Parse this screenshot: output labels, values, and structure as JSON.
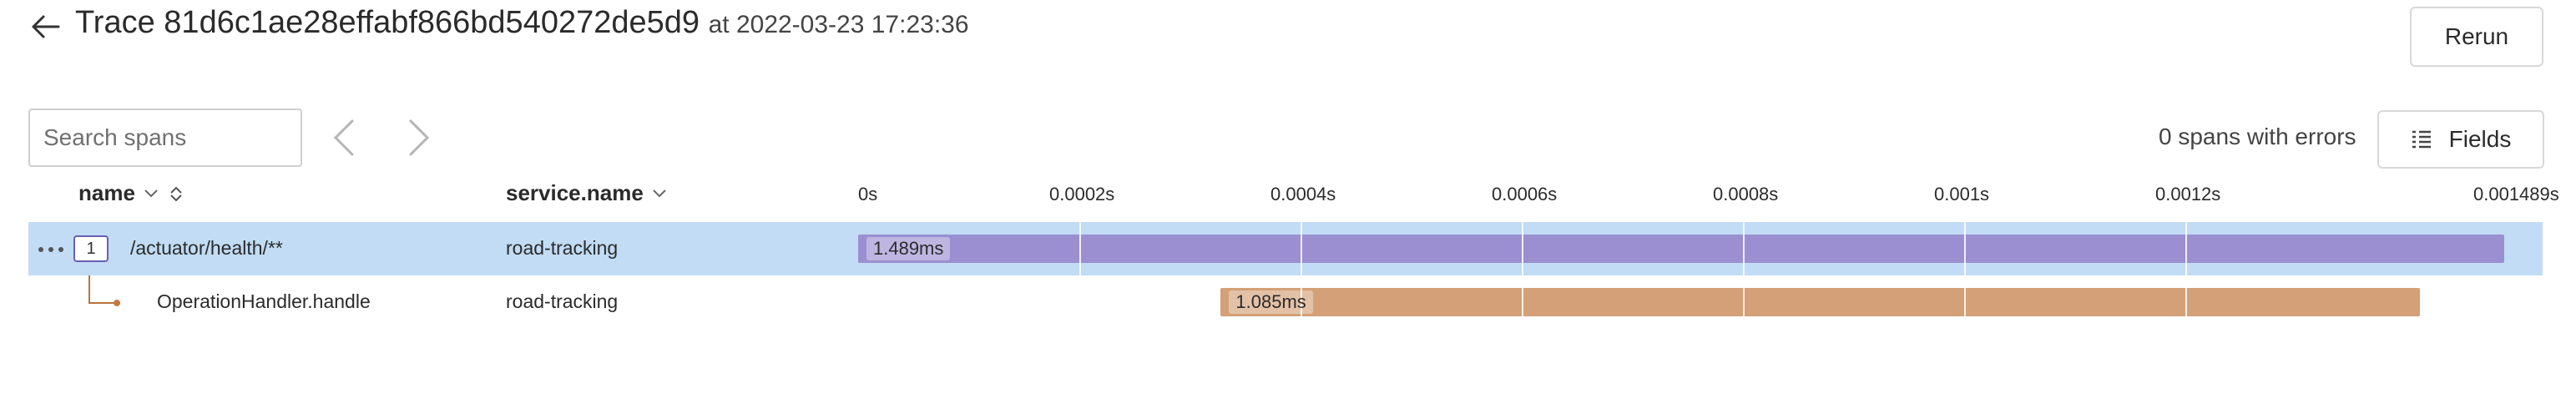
{
  "header": {
    "title_prefix": "Trace",
    "trace_id": "81d6c1ae28effabf866bd540272de5d9",
    "timestamp": "at 2022-03-23 17:23:36",
    "rerun_label": "Rerun"
  },
  "toolbar": {
    "search_placeholder": "Search spans",
    "errors_text": "0 spans with errors",
    "fields_label": "Fields"
  },
  "columns": {
    "name": "name",
    "service": "service.name"
  },
  "timeline": {
    "ticks": [
      "0s",
      "0.0002s",
      "0.0004s",
      "0.0006s",
      "0.0008s",
      "0.001s",
      "0.0012s",
      "0.001489s"
    ],
    "total_duration_ms": 1.489
  },
  "spans": [
    {
      "depth_badge": "1",
      "name": "/actuator/health/**",
      "service": "road-tracking",
      "duration_label": "1.489ms",
      "start_ms": 0,
      "duration_ms": 1.489,
      "color": "#9b8fd1",
      "selected": true
    },
    {
      "name": "OperationHandler.handle",
      "service": "road-tracking",
      "duration_label": "1.085ms",
      "start_ms": 0.328,
      "duration_ms": 1.085,
      "color": "#d4a077",
      "selected": false
    }
  ]
}
